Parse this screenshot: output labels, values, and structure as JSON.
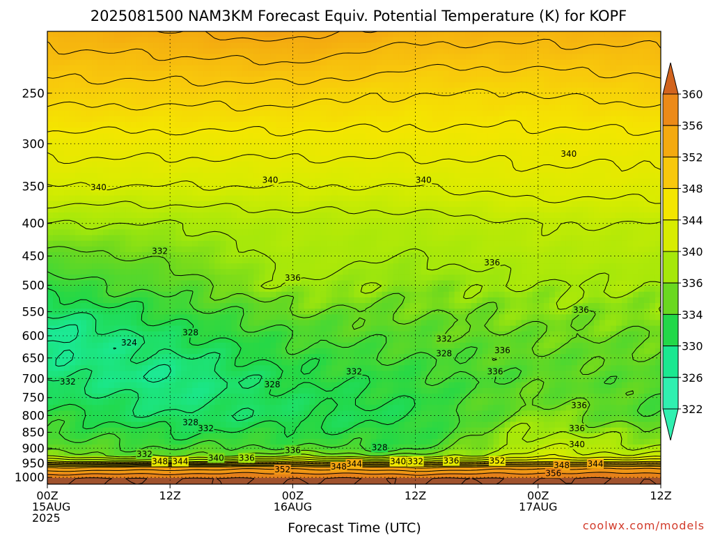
{
  "chart_data": {
    "type": "heatmap",
    "title": "2025081500 NAM3KM Forecast Equiv. Potential Temperature (K) for KOPF",
    "xlabel": "Forecast Time (UTC)",
    "ylabel": "",
    "credit": "coolwx.com/models",
    "y_axis": {
      "scale": "log",
      "inverted": true,
      "range": [
        1025,
        200
      ],
      "ticks": [
        250,
        300,
        350,
        400,
        450,
        500,
        550,
        600,
        650,
        700,
        750,
        800,
        850,
        900,
        950,
        1000
      ],
      "grid": "dotted"
    },
    "x_axis": {
      "range_hours": [
        0,
        60
      ],
      "ticks": [
        {
          "hour": 0,
          "line1": "00Z",
          "line2": "15AUG",
          "line3": "2025"
        },
        {
          "hour": 12,
          "line1": "12Z",
          "line2": "",
          "line3": ""
        },
        {
          "hour": 24,
          "line1": "00Z",
          "line2": "16AUG",
          "line3": ""
        },
        {
          "hour": 36,
          "line1": "12Z",
          "line2": "",
          "line3": ""
        },
        {
          "hour": 48,
          "line1": "00Z",
          "line2": "17AUG",
          "line3": ""
        },
        {
          "hour": 60,
          "line1": "12Z",
          "line2": "",
          "line3": ""
        }
      ]
    },
    "colorbar": {
      "ticks": [
        360,
        356,
        352,
        348,
        344,
        340,
        336,
        334,
        330,
        326,
        322
      ],
      "colors": [
        "#d2641e",
        "#ec8a18",
        "#f4aa10",
        "#f8c80c",
        "#f4e600",
        "#d8ec00",
        "#a6e80a",
        "#6ad820",
        "#22d848",
        "#1ae890",
        "#30f0b0"
      ]
    },
    "profile_columns": [
      {
        "hour": 0,
        "levels": [
          {
            "p": 1000,
            "theta": 358
          },
          {
            "p": 955,
            "theta": 350
          },
          {
            "p": 940,
            "theta": 336
          },
          {
            "p": 900,
            "theta": 333
          },
          {
            "p": 800,
            "theta": 331
          },
          {
            "p": 700,
            "theta": 328
          },
          {
            "p": 600,
            "theta": 325
          },
          {
            "p": 500,
            "theta": 331
          },
          {
            "p": 400,
            "theta": 336
          },
          {
            "p": 350,
            "theta": 340
          },
          {
            "p": 300,
            "theta": 343
          },
          {
            "p": 250,
            "theta": 347
          },
          {
            "p": 200,
            "theta": 351
          }
        ]
      },
      {
        "hour": 12,
        "levels": [
          {
            "p": 1000,
            "theta": 358
          },
          {
            "p": 955,
            "theta": 351
          },
          {
            "p": 940,
            "theta": 334
          },
          {
            "p": 900,
            "theta": 332
          },
          {
            "p": 800,
            "theta": 328
          },
          {
            "p": 700,
            "theta": 326
          },
          {
            "p": 600,
            "theta": 329
          },
          {
            "p": 500,
            "theta": 333
          },
          {
            "p": 400,
            "theta": 336
          },
          {
            "p": 350,
            "theta": 340
          },
          {
            "p": 300,
            "theta": 343
          },
          {
            "p": 250,
            "theta": 347
          },
          {
            "p": 200,
            "theta": 352
          }
        ]
      },
      {
        "hour": 24,
        "levels": [
          {
            "p": 1000,
            "theta": 358
          },
          {
            "p": 955,
            "theta": 352
          },
          {
            "p": 940,
            "theta": 338
          },
          {
            "p": 900,
            "theta": 332
          },
          {
            "p": 800,
            "theta": 329
          },
          {
            "p": 700,
            "theta": 330
          },
          {
            "p": 600,
            "theta": 332
          },
          {
            "p": 500,
            "theta": 336
          },
          {
            "p": 400,
            "theta": 337
          },
          {
            "p": 350,
            "theta": 340
          },
          {
            "p": 300,
            "theta": 343
          },
          {
            "p": 250,
            "theta": 347
          },
          {
            "p": 200,
            "theta": 353
          }
        ]
      },
      {
        "hour": 36,
        "levels": [
          {
            "p": 1000,
            "theta": 358
          },
          {
            "p": 955,
            "theta": 350
          },
          {
            "p": 940,
            "theta": 336
          },
          {
            "p": 900,
            "theta": 331
          },
          {
            "p": 800,
            "theta": 330
          },
          {
            "p": 700,
            "theta": 331
          },
          {
            "p": 600,
            "theta": 333
          },
          {
            "p": 500,
            "theta": 335
          },
          {
            "p": 400,
            "theta": 337
          },
          {
            "p": 350,
            "theta": 340
          },
          {
            "p": 300,
            "theta": 343
          },
          {
            "p": 250,
            "theta": 346
          },
          {
            "p": 200,
            "theta": 351
          }
        ]
      },
      {
        "hour": 48,
        "levels": [
          {
            "p": 1000,
            "theta": 358
          },
          {
            "p": 955,
            "theta": 352
          },
          {
            "p": 940,
            "theta": 340
          },
          {
            "p": 900,
            "theta": 338
          },
          {
            "p": 800,
            "theta": 335
          },
          {
            "p": 700,
            "theta": 333
          },
          {
            "p": 600,
            "theta": 334
          },
          {
            "p": 500,
            "theta": 336
          },
          {
            "p": 400,
            "theta": 338
          },
          {
            "p": 350,
            "theta": 341
          },
          {
            "p": 300,
            "theta": 343
          },
          {
            "p": 250,
            "theta": 346
          },
          {
            "p": 200,
            "theta": 351
          }
        ]
      },
      {
        "hour": 60,
        "levels": [
          {
            "p": 1000,
            "theta": 358
          },
          {
            "p": 955,
            "theta": 352
          },
          {
            "p": 940,
            "theta": 340
          },
          {
            "p": 900,
            "theta": 336
          },
          {
            "p": 800,
            "theta": 332
          },
          {
            "p": 700,
            "theta": 333
          },
          {
            "p": 600,
            "theta": 334
          },
          {
            "p": 500,
            "theta": 336
          },
          {
            "p": 400,
            "theta": 338
          },
          {
            "p": 350,
            "theta": 341
          },
          {
            "p": 300,
            "theta": 343
          },
          {
            "p": 250,
            "theta": 347
          },
          {
            "p": 200,
            "theta": 351
          }
        ]
      }
    ],
    "contour_labels": [
      {
        "text": "340",
        "hour": 5.0,
        "p": 352
      },
      {
        "text": "340",
        "hour": 21.8,
        "p": 343
      },
      {
        "text": "340",
        "hour": 36.8,
        "p": 343
      },
      {
        "text": "340",
        "hour": 51.0,
        "p": 312
      },
      {
        "text": "332",
        "hour": 11.0,
        "p": 443
      },
      {
        "text": "336",
        "hour": 24.0,
        "p": 488
      },
      {
        "text": "336",
        "hour": 43.5,
        "p": 462
      },
      {
        "text": "336",
        "hour": 52.2,
        "p": 548
      },
      {
        "text": "328",
        "hour": 14.0,
        "p": 595
      },
      {
        "text": "324",
        "hour": 8.0,
        "p": 617
      },
      {
        "text": "332",
        "hour": 38.8,
        "p": 608
      },
      {
        "text": "328",
        "hour": 38.8,
        "p": 641
      },
      {
        "text": "336",
        "hour": 44.5,
        "p": 634
      },
      {
        "text": "336",
        "hour": 43.8,
        "p": 685
      },
      {
        "text": "332",
        "hour": 30.0,
        "p": 685
      },
      {
        "text": "328",
        "hour": 22.0,
        "p": 717
      },
      {
        "text": "332",
        "hour": 2.0,
        "p": 710
      },
      {
        "text": "336",
        "hour": 52.0,
        "p": 773
      },
      {
        "text": "328",
        "hour": 14.0,
        "p": 823
      },
      {
        "text": "332",
        "hour": 15.5,
        "p": 840
      },
      {
        "text": "336",
        "hour": 51.8,
        "p": 840
      },
      {
        "text": "340",
        "hour": 51.8,
        "p": 890
      },
      {
        "text": "336",
        "hour": 24.0,
        "p": 910
      },
      {
        "text": "328",
        "hour": 32.5,
        "p": 900
      },
      {
        "text": "332",
        "hour": 9.5,
        "p": 922
      },
      {
        "text": "340",
        "hour": 16.5,
        "p": 935
      },
      {
        "text": "336",
        "hour": 19.5,
        "p": 935
      },
      {
        "text": "348",
        "hour": 11.0,
        "p": 947
      },
      {
        "text": "344",
        "hour": 13.0,
        "p": 947
      },
      {
        "text": "344",
        "hour": 30.0,
        "p": 955
      },
      {
        "text": "348",
        "hour": 28.5,
        "p": 965
      },
      {
        "text": "352",
        "hour": 23.0,
        "p": 975
      },
      {
        "text": "340",
        "hour": 34.3,
        "p": 947
      },
      {
        "text": "332",
        "hour": 36.0,
        "p": 947
      },
      {
        "text": "336",
        "hour": 39.5,
        "p": 945
      },
      {
        "text": "352",
        "hour": 44.0,
        "p": 945
      },
      {
        "text": "348",
        "hour": 50.3,
        "p": 960
      },
      {
        "text": "344",
        "hour": 53.6,
        "p": 955
      },
      {
        "text": "356",
        "hour": 49.5,
        "p": 988
      }
    ]
  }
}
